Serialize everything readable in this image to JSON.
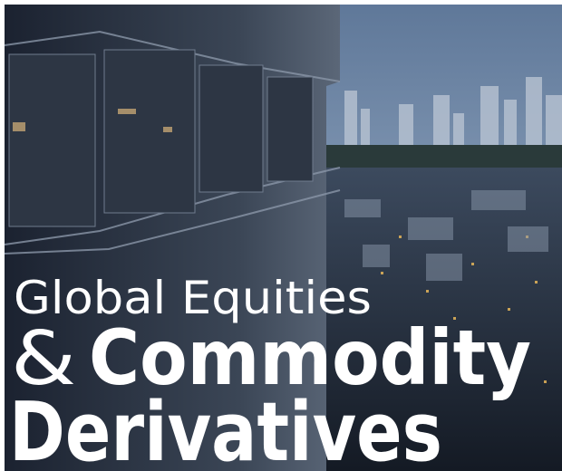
{
  "title": {
    "line1": "Global Equities",
    "ampersand": "&",
    "line2": "Commodity",
    "line3": "Derivatives"
  }
}
